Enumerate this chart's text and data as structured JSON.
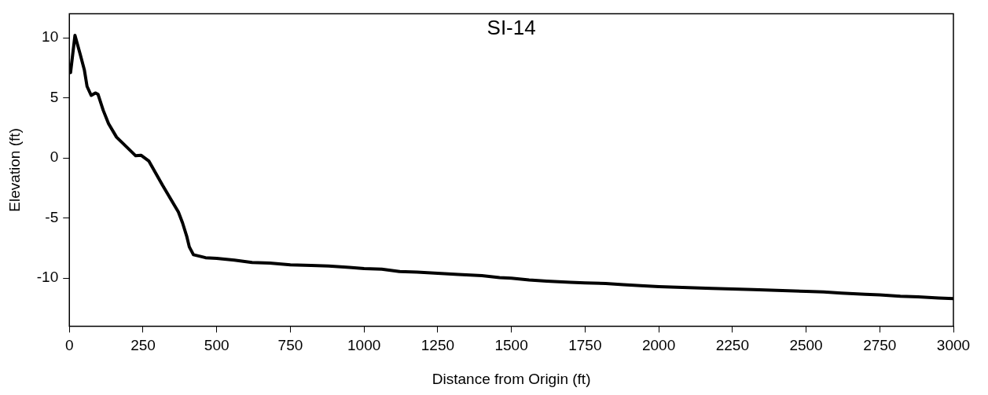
{
  "chart_data": {
    "type": "line",
    "title": "SI-14",
    "xlabel": "Distance from Origin (ft)",
    "ylabel": "Elevation (ft)",
    "xlim": [
      0,
      3000
    ],
    "xticks": [
      0,
      250,
      500,
      750,
      1000,
      1250,
      1500,
      1750,
      2000,
      2250,
      2500,
      2750,
      3000
    ],
    "ylim": [
      -14,
      12
    ],
    "yticks": [
      -10,
      -5,
      0,
      5,
      10
    ],
    "grid": false,
    "legend": false,
    "marker": "none",
    "line_style": "solid",
    "series": [
      {
        "color": "#000000",
        "x": [
          0,
          4,
          19,
          37,
          51,
          60,
          74,
          88,
          97,
          115,
          133,
          160,
          197,
          225,
          243,
          270,
          316,
          370,
          384,
          398,
          407,
          421,
          462,
          500,
          560,
          620,
          680,
          750,
          820,
          880,
          950,
          1000,
          1060,
          1120,
          1180,
          1250,
          1320,
          1400,
          1460,
          1500,
          1560,
          1620,
          1700,
          1750,
          1820,
          1880,
          1950,
          2000,
          2060,
          2120,
          2180,
          2250,
          2320,
          2380,
          2440,
          2500,
          2560,
          2620,
          2700,
          2750,
          2820,
          2880,
          2950,
          3000
        ],
        "values": [
          7.4,
          7.1,
          10.2,
          8.6,
          7.3,
          5.95,
          5.2,
          5.4,
          5.3,
          3.95,
          2.85,
          1.73,
          0.85,
          0.18,
          0.22,
          -0.27,
          -2.27,
          -4.5,
          -5.4,
          -6.5,
          -7.4,
          -8.05,
          -8.3,
          -8.35,
          -8.5,
          -8.7,
          -8.75,
          -8.9,
          -8.95,
          -9.0,
          -9.1,
          -9.2,
          -9.25,
          -9.45,
          -9.5,
          -9.6,
          -9.7,
          -9.8,
          -9.95,
          -10.0,
          -10.15,
          -10.25,
          -10.35,
          -10.4,
          -10.45,
          -10.55,
          -10.65,
          -10.7,
          -10.75,
          -10.8,
          -10.85,
          -10.9,
          -10.95,
          -11.0,
          -11.05,
          -11.1,
          -11.15,
          -11.25,
          -11.35,
          -11.4,
          -11.5,
          -11.55,
          -11.65,
          -11.7
        ]
      }
    ]
  }
}
